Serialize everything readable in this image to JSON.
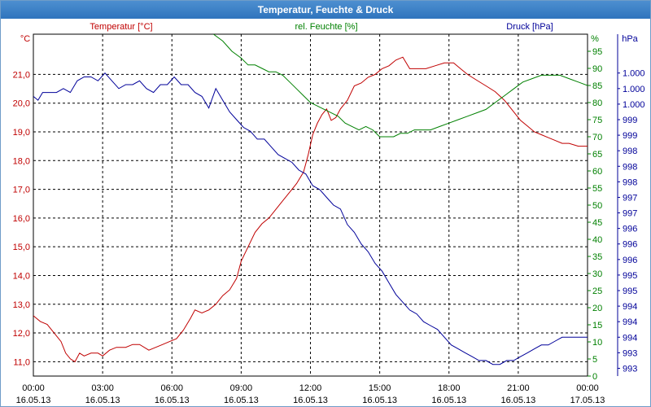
{
  "window": {
    "title": "Temperatur, Feuchte & Druck"
  },
  "colors": {
    "temperature": "#c00000",
    "humidity": "#008000",
    "pressure": "#000099",
    "grid": "#000000",
    "title_bar": "#3b82c8"
  },
  "chart_data": {
    "type": "line",
    "title": "Temperatur, Feuchte & Druck",
    "x_tick_labels": [
      [
        "00:00",
        "16.05.13"
      ],
      [
        "03:00",
        "16.05.13"
      ],
      [
        "06:00",
        "16.05.13"
      ],
      [
        "09:00",
        "16.05.13"
      ],
      [
        "12:00",
        "16.05.13"
      ],
      [
        "15:00",
        "16.05.13"
      ],
      [
        "18:00",
        "16.05.13"
      ],
      [
        "21:00",
        "16.05.13"
      ],
      [
        "00:00",
        "17.05.13"
      ]
    ],
    "x_range_hours": [
      0,
      24
    ],
    "grid": true,
    "axes": {
      "left": {
        "label": "Temperatur [°C]",
        "unit": "°C",
        "range": [
          10.5,
          22.4
        ],
        "ticks": [
          {
            "v": 11,
            "t": "11,0"
          },
          {
            "v": 12,
            "t": "12,0"
          },
          {
            "v": 13,
            "t": "13,0"
          },
          {
            "v": 14,
            "t": "14,0"
          },
          {
            "v": 15,
            "t": "15,0"
          },
          {
            "v": 16,
            "t": "16,0"
          },
          {
            "v": 17,
            "t": "17,0"
          },
          {
            "v": 18,
            "t": "18,0"
          },
          {
            "v": 19,
            "t": "19,0"
          },
          {
            "v": 20,
            "t": "20,0"
          },
          {
            "v": 21,
            "t": "21,0"
          }
        ]
      },
      "middle": {
        "label": "rel. Feuchte [%]",
        "unit": "%",
        "range": [
          0,
          100
        ],
        "ticks": [
          {
            "v": 0,
            "t": "0"
          },
          {
            "v": 5,
            "t": "5"
          },
          {
            "v": 10,
            "t": "10"
          },
          {
            "v": 15,
            "t": "15"
          },
          {
            "v": 20,
            "t": "20"
          },
          {
            "v": 25,
            "t": "25"
          },
          {
            "v": 30,
            "t": "30"
          },
          {
            "v": 35,
            "t": "35"
          },
          {
            "v": 40,
            "t": "40"
          },
          {
            "v": 45,
            "t": "45"
          },
          {
            "v": 50,
            "t": "50"
          },
          {
            "v": 55,
            "t": "55"
          },
          {
            "v": 60,
            "t": "60"
          },
          {
            "v": 65,
            "t": "65"
          },
          {
            "v": 70,
            "t": "70"
          },
          {
            "v": 75,
            "t": "75"
          },
          {
            "v": 80,
            "t": "80"
          },
          {
            "v": 85,
            "t": "85"
          },
          {
            "v": 90,
            "t": "90"
          },
          {
            "v": 95,
            "t": "95"
          }
        ]
      },
      "right": {
        "label": "Druck [hPa]",
        "unit": "hPa",
        "range": [
          992.6,
          1001.4
        ],
        "ticks": [
          {
            "v": 992.8,
            "t": "993"
          },
          {
            "v": 993.2,
            "t": "993"
          },
          {
            "v": 993.6,
            "t": "994"
          },
          {
            "v": 994.0,
            "t": "994"
          },
          {
            "v": 994.4,
            "t": "994"
          },
          {
            "v": 994.8,
            "t": "995"
          },
          {
            "v": 995.2,
            "t": "995"
          },
          {
            "v": 995.6,
            "t": "996"
          },
          {
            "v": 996.0,
            "t": "996"
          },
          {
            "v": 996.4,
            "t": "996"
          },
          {
            "v": 996.8,
            "t": "997"
          },
          {
            "v": 997.2,
            "t": "997"
          },
          {
            "v": 997.6,
            "t": "998"
          },
          {
            "v": 998.0,
            "t": "998"
          },
          {
            "v": 998.4,
            "t": "998"
          },
          {
            "v": 998.8,
            "t": "999"
          },
          {
            "v": 999.2,
            "t": "999"
          },
          {
            "v": 999.6,
            "t": "1.000"
          },
          {
            "v": 1000.0,
            "t": "1.000"
          },
          {
            "v": 1000.4,
            "t": "1.000"
          }
        ]
      }
    },
    "series": [
      {
        "name": "Temperatur [°C]",
        "axis": "left",
        "color": "#c00000",
        "points": [
          [
            0,
            12.6
          ],
          [
            0.3,
            12.4
          ],
          [
            0.6,
            12.3
          ],
          [
            0.9,
            12.0
          ],
          [
            1.2,
            11.7
          ],
          [
            1.4,
            11.3
          ],
          [
            1.6,
            11.1
          ],
          [
            1.8,
            11.0
          ],
          [
            2.0,
            11.3
          ],
          [
            2.2,
            11.2
          ],
          [
            2.5,
            11.3
          ],
          [
            2.8,
            11.3
          ],
          [
            3.0,
            11.2
          ],
          [
            3.3,
            11.4
          ],
          [
            3.6,
            11.5
          ],
          [
            4.0,
            11.5
          ],
          [
            4.3,
            11.6
          ],
          [
            4.6,
            11.6
          ],
          [
            5.0,
            11.4
          ],
          [
            5.3,
            11.5
          ],
          [
            5.6,
            11.6
          ],
          [
            5.9,
            11.7
          ],
          [
            6.2,
            11.8
          ],
          [
            6.5,
            12.1
          ],
          [
            6.8,
            12.5
          ],
          [
            7.0,
            12.8
          ],
          [
            7.3,
            12.7
          ],
          [
            7.6,
            12.8
          ],
          [
            7.9,
            13.0
          ],
          [
            8.2,
            13.3
          ],
          [
            8.5,
            13.5
          ],
          [
            8.8,
            13.9
          ],
          [
            9.0,
            14.5
          ],
          [
            9.3,
            15.0
          ],
          [
            9.6,
            15.5
          ],
          [
            9.9,
            15.8
          ],
          [
            10.2,
            16.0
          ],
          [
            10.5,
            16.3
          ],
          [
            10.8,
            16.6
          ],
          [
            11.1,
            16.9
          ],
          [
            11.4,
            17.2
          ],
          [
            11.7,
            17.6
          ],
          [
            11.9,
            18.2
          ],
          [
            12.1,
            18.9
          ],
          [
            12.3,
            19.3
          ],
          [
            12.5,
            19.6
          ],
          [
            12.7,
            19.8
          ],
          [
            12.9,
            19.4
          ],
          [
            13.1,
            19.5
          ],
          [
            13.3,
            19.8
          ],
          [
            13.6,
            20.1
          ],
          [
            13.9,
            20.6
          ],
          [
            14.2,
            20.7
          ],
          [
            14.5,
            20.9
          ],
          [
            14.8,
            21.0
          ],
          [
            15.1,
            21.2
          ],
          [
            15.4,
            21.3
          ],
          [
            15.7,
            21.5
          ],
          [
            16.0,
            21.6
          ],
          [
            16.3,
            21.2
          ],
          [
            16.6,
            21.2
          ],
          [
            17.0,
            21.2
          ],
          [
            17.4,
            21.3
          ],
          [
            17.8,
            21.4
          ],
          [
            18.2,
            21.4
          ],
          [
            18.5,
            21.2
          ],
          [
            18.8,
            21.0
          ],
          [
            19.2,
            20.8
          ],
          [
            19.6,
            20.6
          ],
          [
            20.0,
            20.4
          ],
          [
            20.4,
            20.1
          ],
          [
            20.8,
            19.7
          ],
          [
            21.1,
            19.4
          ],
          [
            21.4,
            19.2
          ],
          [
            21.7,
            19.0
          ],
          [
            22.0,
            18.9
          ],
          [
            22.3,
            18.8
          ],
          [
            22.6,
            18.7
          ],
          [
            22.9,
            18.6
          ],
          [
            23.2,
            18.6
          ],
          [
            23.6,
            18.5
          ],
          [
            24.0,
            18.5
          ]
        ]
      },
      {
        "name": "rel. Feuchte [%]",
        "axis": "middle",
        "color": "#008000",
        "points": [
          [
            7.8,
            100
          ],
          [
            8.2,
            98
          ],
          [
            8.6,
            95
          ],
          [
            9.0,
            93
          ],
          [
            9.3,
            91
          ],
          [
            9.6,
            91
          ],
          [
            9.9,
            90
          ],
          [
            10.2,
            89
          ],
          [
            10.5,
            89
          ],
          [
            10.8,
            88
          ],
          [
            11.1,
            86
          ],
          [
            11.4,
            84
          ],
          [
            11.7,
            82
          ],
          [
            12.0,
            80
          ],
          [
            12.3,
            79
          ],
          [
            12.6,
            78
          ],
          [
            12.9,
            77
          ],
          [
            13.2,
            76
          ],
          [
            13.5,
            74
          ],
          [
            13.8,
            73
          ],
          [
            14.1,
            72
          ],
          [
            14.4,
            73
          ],
          [
            14.7,
            72
          ],
          [
            15.0,
            70
          ],
          [
            15.3,
            70
          ],
          [
            15.6,
            70
          ],
          [
            15.9,
            71
          ],
          [
            16.2,
            71
          ],
          [
            16.5,
            72
          ],
          [
            16.8,
            72
          ],
          [
            17.2,
            72
          ],
          [
            17.6,
            73
          ],
          [
            18.0,
            74
          ],
          [
            18.4,
            75
          ],
          [
            18.8,
            76
          ],
          [
            19.2,
            77
          ],
          [
            19.6,
            78
          ],
          [
            20.0,
            80
          ],
          [
            20.4,
            82
          ],
          [
            20.8,
            84
          ],
          [
            21.2,
            86
          ],
          [
            21.6,
            87
          ],
          [
            22.0,
            88
          ],
          [
            22.4,
            88
          ],
          [
            22.8,
            88
          ],
          [
            23.2,
            87
          ],
          [
            23.6,
            86
          ],
          [
            24.0,
            85
          ]
        ]
      },
      {
        "name": "Druck [hPa]",
        "axis": "right",
        "color": "#000099",
        "points": [
          [
            0,
            999.8
          ],
          [
            0.2,
            999.7
          ],
          [
            0.4,
            999.9
          ],
          [
            0.7,
            999.9
          ],
          [
            1.0,
            999.9
          ],
          [
            1.3,
            1000.0
          ],
          [
            1.6,
            999.9
          ],
          [
            1.9,
            1000.2
          ],
          [
            2.2,
            1000.3
          ],
          [
            2.5,
            1000.3
          ],
          [
            2.8,
            1000.2
          ],
          [
            3.1,
            1000.4
          ],
          [
            3.4,
            1000.2
          ],
          [
            3.7,
            1000.0
          ],
          [
            4.0,
            1000.1
          ],
          [
            4.3,
            1000.1
          ],
          [
            4.6,
            1000.2
          ],
          [
            4.9,
            1000.0
          ],
          [
            5.2,
            999.9
          ],
          [
            5.5,
            1000.1
          ],
          [
            5.8,
            1000.1
          ],
          [
            6.1,
            1000.3
          ],
          [
            6.4,
            1000.1
          ],
          [
            6.7,
            1000.1
          ],
          [
            7.0,
            999.9
          ],
          [
            7.3,
            999.8
          ],
          [
            7.6,
            999.5
          ],
          [
            7.9,
            1000.0
          ],
          [
            8.2,
            999.7
          ],
          [
            8.5,
            999.4
          ],
          [
            8.8,
            999.2
          ],
          [
            9.1,
            999.0
          ],
          [
            9.4,
            998.9
          ],
          [
            9.7,
            998.7
          ],
          [
            10.0,
            998.7
          ],
          [
            10.3,
            998.5
          ],
          [
            10.6,
            998.3
          ],
          [
            10.9,
            998.2
          ],
          [
            11.2,
            998.1
          ],
          [
            11.5,
            997.9
          ],
          [
            11.8,
            997.8
          ],
          [
            12.1,
            997.5
          ],
          [
            12.4,
            997.4
          ],
          [
            12.7,
            997.2
          ],
          [
            13.0,
            997.0
          ],
          [
            13.3,
            996.9
          ],
          [
            13.6,
            996.5
          ],
          [
            13.9,
            996.3
          ],
          [
            14.2,
            996.0
          ],
          [
            14.5,
            995.8
          ],
          [
            14.8,
            995.5
          ],
          [
            15.1,
            995.3
          ],
          [
            15.4,
            995.0
          ],
          [
            15.7,
            994.7
          ],
          [
            16.0,
            994.5
          ],
          [
            16.3,
            994.3
          ],
          [
            16.6,
            994.2
          ],
          [
            16.9,
            994.0
          ],
          [
            17.2,
            993.9
          ],
          [
            17.5,
            993.8
          ],
          [
            17.8,
            993.6
          ],
          [
            18.1,
            993.4
          ],
          [
            18.4,
            993.3
          ],
          [
            18.7,
            993.2
          ],
          [
            19.0,
            993.1
          ],
          [
            19.3,
            993.0
          ],
          [
            19.6,
            993.0
          ],
          [
            19.9,
            992.9
          ],
          [
            20.2,
            992.9
          ],
          [
            20.5,
            993.0
          ],
          [
            20.8,
            993.0
          ],
          [
            21.1,
            993.1
          ],
          [
            21.4,
            993.2
          ],
          [
            21.7,
            993.3
          ],
          [
            22.0,
            993.4
          ],
          [
            22.3,
            993.4
          ],
          [
            22.6,
            993.5
          ],
          [
            22.9,
            993.6
          ],
          [
            23.2,
            993.6
          ],
          [
            23.5,
            993.6
          ],
          [
            23.8,
            993.6
          ],
          [
            24.0,
            993.6
          ]
        ]
      }
    ]
  }
}
